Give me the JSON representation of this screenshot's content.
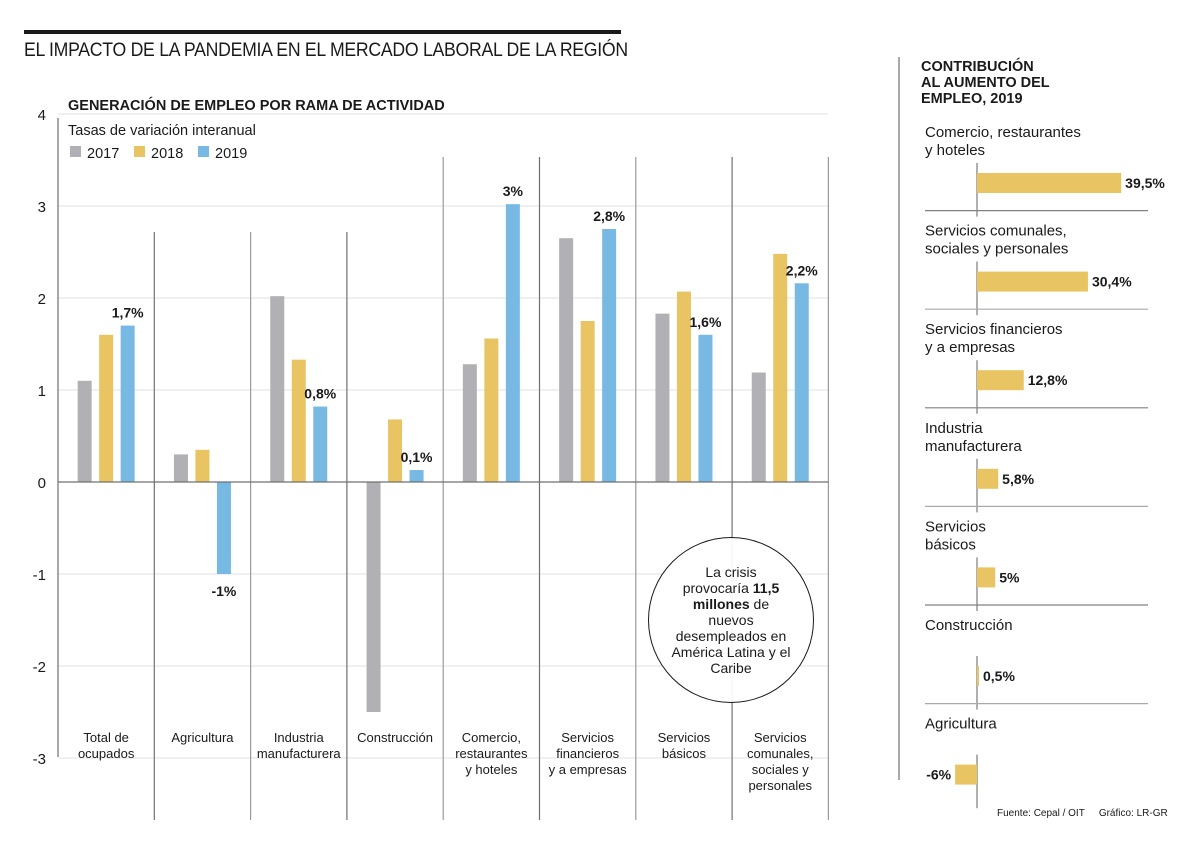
{
  "header": {
    "title": "EL IMPACTO DE LA PANDEMIA EN EL MERCADO LABORAL DE LA REGIÓN"
  },
  "callout": {
    "line1": "La crisis provocaría",
    "highlight": "11,5 millones",
    "line2": "de nuevos desempleados en América Latina y el Caribe"
  },
  "side": {
    "title_lines": [
      "CONTRIBUCIÓN",
      "AL AUMENTO DEL",
      "EMPLEO, 2019"
    ]
  },
  "footer": {
    "source": "Fuente: Cepal / OIT",
    "credit": "Gráfico: LR-GR"
  },
  "colors": {
    "2017": "#b1b0b5",
    "2018": "#e9c462",
    "2019": "#77b9e3",
    "grid": "#e6e6e6",
    "axis": "#707070"
  },
  "chart_data": [
    {
      "type": "bar",
      "title": "GENERACIÓN DE EMPLEO POR RAMA DE ACTIVIDAD",
      "subtitle": "Tasas de variación interanual",
      "xlabel": "",
      "ylabel": "",
      "ylim": [
        -3,
        4
      ],
      "yticks": [
        4,
        3,
        2,
        1,
        0,
        -1,
        -2,
        -3
      ],
      "grid": true,
      "legend": "top-left",
      "categories": [
        [
          "Total de",
          "ocupados"
        ],
        [
          "Agricultura"
        ],
        [
          "Industria",
          "manufacturera"
        ],
        [
          "Construcción"
        ],
        [
          "Comercio,",
          "restaurantes",
          "y hoteles"
        ],
        [
          "Servicios",
          "financieros",
          "y a empresas"
        ],
        [
          "Servicios",
          "básicos"
        ],
        [
          "Servicios",
          "comunales,",
          "sociales y",
          "personales"
        ]
      ],
      "series": [
        {
          "name": "2017",
          "values": [
            1.1,
            0.3,
            2.02,
            -2.5,
            1.28,
            2.65,
            1.83,
            1.19
          ]
        },
        {
          "name": "2018",
          "values": [
            1.6,
            0.35,
            1.33,
            0.68,
            1.56,
            1.75,
            2.07,
            2.48
          ]
        },
        {
          "name": "2019",
          "values": [
            1.7,
            -1.0,
            0.82,
            0.13,
            3.02,
            2.75,
            1.6,
            2.16
          ]
        }
      ],
      "data_labels_2019": [
        "1,7%",
        "-1%",
        "0,8%",
        "0,1%",
        "3%",
        "2,8%",
        "1,6%",
        "2,2%"
      ]
    },
    {
      "type": "bar",
      "orientation": "horizontal",
      "title": "CONTRIBUCIÓN AL AUMENTO DEL EMPLEO, 2019",
      "categories": [
        [
          "Comercio, restaurantes",
          "y hoteles"
        ],
        [
          "Servicios comunales,",
          "sociales y personales"
        ],
        [
          "Servicios financieros",
          "y a empresas"
        ],
        [
          "Industria",
          "manufacturera"
        ],
        [
          "Servicios",
          "básicos"
        ],
        [
          "Construcción"
        ],
        [
          "Agricultura"
        ]
      ],
      "values": [
        39.5,
        30.4,
        12.8,
        5.8,
        5,
        0.5,
        -6
      ],
      "data_labels": [
        "39,5%",
        "30,4%",
        "12,8%",
        "5,8%",
        "5%",
        "0,5%",
        "-6%"
      ],
      "unit": "%"
    }
  ]
}
